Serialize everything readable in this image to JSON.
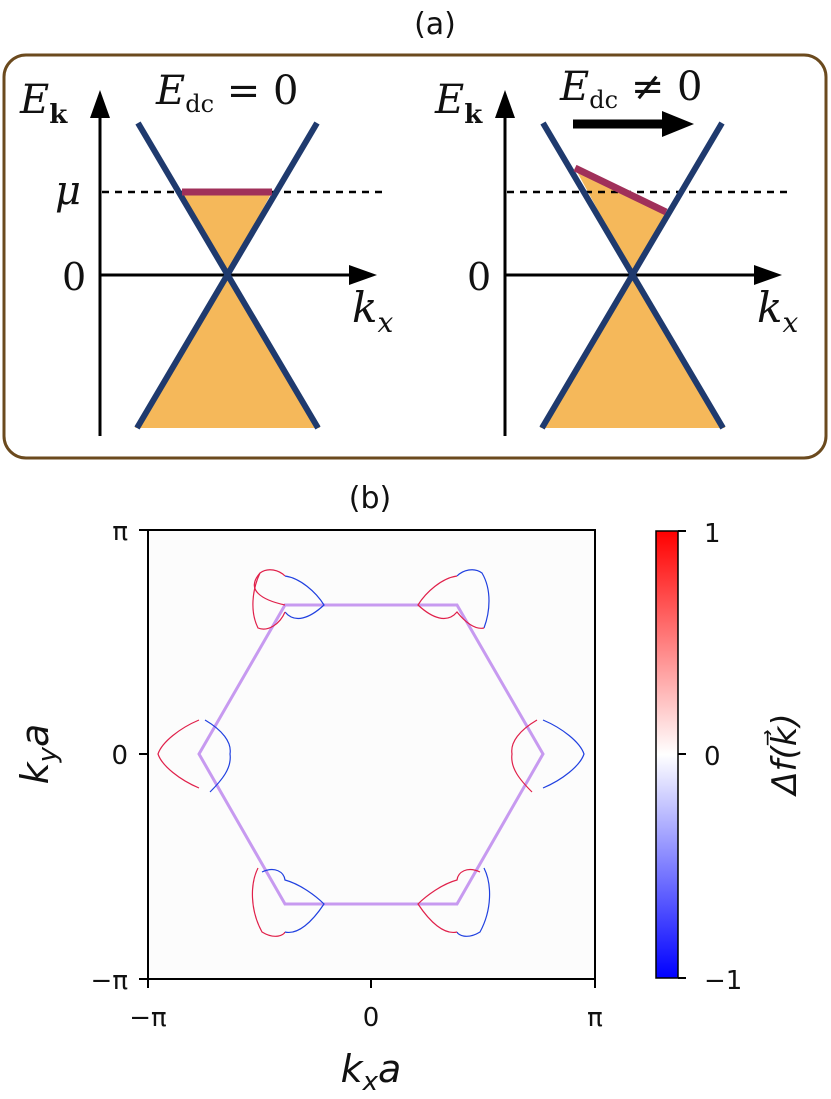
{
  "panel_a": {
    "label": "(a)",
    "left": {
      "e_axis": "E",
      "e_sub": "k",
      "cond_main": "E",
      "cond_sub": "dc",
      "cond_rest": " = 0",
      "mu": "μ",
      "zero": "0",
      "k_main": "k",
      "k_sub": "x"
    },
    "right": {
      "e_axis": "E",
      "e_sub": "k",
      "cond_main": "E",
      "cond_sub": "dc",
      "cond_rest": " ≠ 0",
      "zero": "0",
      "k_main": "k",
      "k_sub": "x"
    },
    "colors": {
      "box_border": "#6b4a1e",
      "cone_line": "#1f3a6e",
      "fill": "#f5b85a",
      "fermi_line": "#a0305a"
    }
  },
  "panel_b": {
    "label": "(b)",
    "x_ticks": [
      "−π",
      "0",
      "π"
    ],
    "y_ticks": [
      "π",
      "0",
      "−π"
    ],
    "x_label_main": "k",
    "x_label_sub": "x",
    "x_label_tail": "a",
    "y_label_main": "k",
    "y_label_sub": "y",
    "y_label_tail": "a",
    "colorbar_ticks": [
      "1",
      "0",
      "−1"
    ],
    "colorbar_label": "Δf(k⃗)",
    "colors": {
      "hexagon": "#c79af0",
      "positive": "#e0204a",
      "negative": "#2040e0"
    }
  }
}
